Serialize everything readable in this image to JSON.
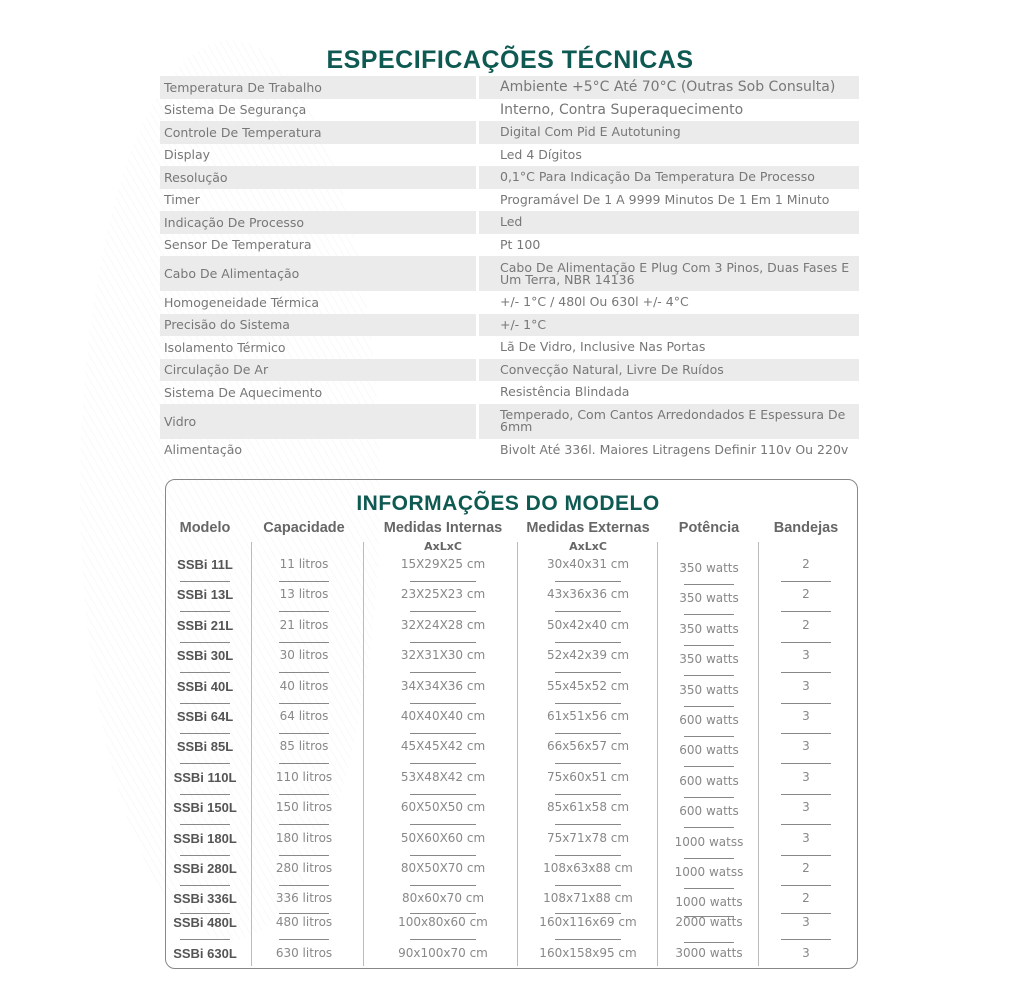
{
  "spec_title": "ESPECIFICAÇÕES TÉCNICAS",
  "spec": [
    [
      "Temperatura De Trabalho",
      "Ambiente +5°C Até 70°C (Outras Sob Consulta)"
    ],
    [
      "Sistema De Segurança",
      "Interno, Contra Superaquecimento"
    ],
    [
      "Controle De Temperatura",
      "Digital Com Pid E Autotuning"
    ],
    [
      "Display",
      "Led 4 Dígitos"
    ],
    [
      "Resolução",
      "0,1°C Para Indicação Da Temperatura De Processo"
    ],
    [
      "Timer",
      "Programável De 1 A 9999 Minutos De 1 Em 1 Minuto"
    ],
    [
      "Indicação De Processo",
      "Led"
    ],
    [
      "Sensor De Temperatura",
      "Pt 100"
    ],
    [
      "Cabo De Alimentação",
      "Cabo De Alimentação E Plug Com 3 Pinos, Duas Fases E Um Terra, NBR 14136"
    ],
    [
      "Homogeneidade Térmica",
      "+/- 1°C / 480l Ou 630l +/- 4°C"
    ],
    [
      "Precisão do Sistema",
      "+/- 1°C"
    ],
    [
      "Isolamento Térmico",
      "Lã De Vidro, Inclusive Nas Portas"
    ],
    [
      "Circulação De Ar",
      "Convecção Natural, Livre De Ruídos"
    ],
    [
      "Sistema De Aquecimento",
      "Resistência Blindada"
    ],
    [
      "Vidro",
      "Temperado, Com Cantos Arredondados E Espessura De 6mm"
    ],
    [
      "Alimentação",
      "Bivolt Até 336l. Maiores Litragens Definir 110v Ou 220v"
    ]
  ],
  "model_title": "INFORMAÇÕES DO MODELO",
  "headers": [
    "Modelo",
    "Capacidade",
    "Medidas Internas",
    "Medidas Externas",
    "Potência",
    "Bandejas"
  ],
  "subheaders": {
    "internas": "AxLxC",
    "externas": "AxLxC"
  },
  "models": [
    [
      "SSBi 11L",
      "11 litros",
      "15X29X25 cm",
      "30x40x31 cm",
      "350 watts",
      "2"
    ],
    [
      "SSBi 13L",
      "13 litros",
      "23X25X23 cm",
      "43x36x36 cm",
      "350 watts",
      "2"
    ],
    [
      "SSBi 21L",
      "21 litros",
      "32X24X28 cm",
      "50x42x40 cm",
      "350 watts",
      "2"
    ],
    [
      "SSBi 30L",
      "30 litros",
      "32X31X30 cm",
      "52x42x39 cm",
      "350 watts",
      "3"
    ],
    [
      "SSBi 40L",
      "40 litros",
      "34X34X36 cm",
      "55x45x52 cm",
      "350 watts",
      "3"
    ],
    [
      "SSBi 64L",
      "64 litros",
      "40X40X40 cm",
      "61x51x56 cm",
      "600 watts",
      "3"
    ],
    [
      "SSBi 85L",
      "85 litros",
      "45X45X42 cm",
      "66x56x57 cm",
      "600 watts",
      "3"
    ],
    [
      "SSBi 110L",
      "110 litros",
      "53X48X42 cm",
      "75x60x51 cm",
      "600 watts",
      "3"
    ],
    [
      "SSBi 150L",
      "150 litros",
      "60X50X50 cm",
      "85x61x58 cm",
      "600 watts",
      "3"
    ],
    [
      "SSBi 180L",
      "180 litros",
      "50X60X60 cm",
      "75x71x78 cm",
      "1000 watss",
      "3"
    ],
    [
      "SSBi 280L",
      "280 litros",
      "80X50X70 cm",
      "108x63x88 cm",
      "1000 watss",
      "2"
    ],
    [
      "SSBi 336L",
      "336 litros",
      "80x60x70 cm",
      "108x71x88 cm",
      "1000 watts",
      "2"
    ],
    [
      "SSBi 480L",
      "480 litros",
      "100x80x60 cm",
      "160x116x69 cm",
      "2000 watts",
      "3"
    ],
    [
      "SSBi 630L",
      "630 litros",
      "90x100x70 cm",
      "160x158x95 cm",
      "3000 watts",
      "3"
    ]
  ]
}
